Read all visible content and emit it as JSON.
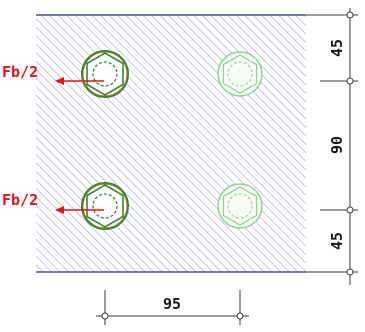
{
  "forces": [
    {
      "label": "Fb/2"
    },
    {
      "label": "Fb/2"
    }
  ],
  "dimensions": {
    "vertical": [
      "45",
      "90",
      "45"
    ],
    "horizontal": [
      "95"
    ]
  },
  "colors": {
    "plate_border": "#4a4f8a",
    "hatch": "#8f93c9",
    "bolt_active": "#2f8a3a",
    "bolt_passive": "#8fcf93",
    "force": "#e8101a",
    "dimension": "#3a3a3a"
  }
}
